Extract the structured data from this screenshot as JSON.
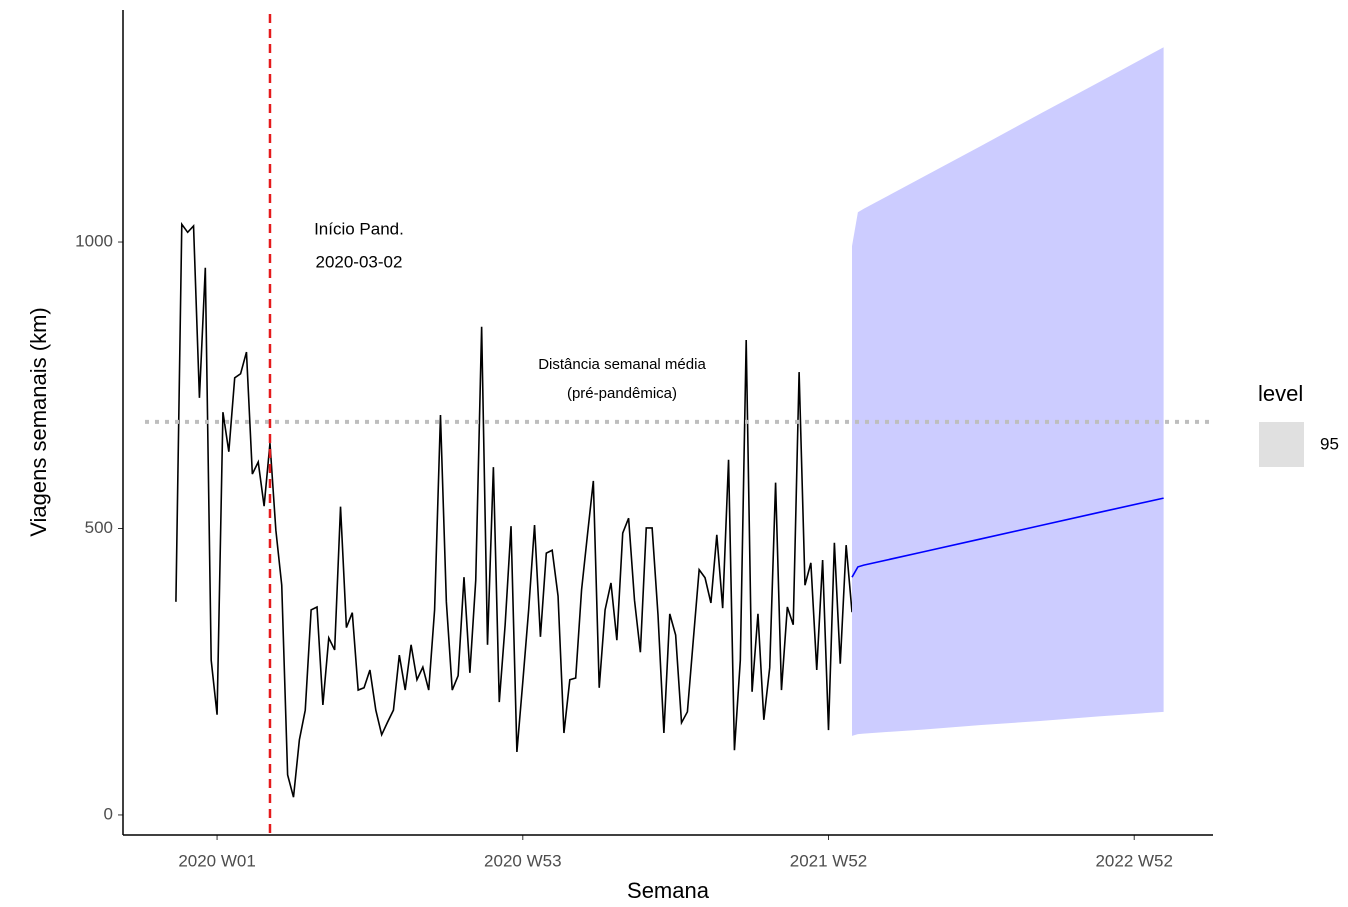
{
  "chart_data": {
    "type": "line",
    "x_label": "Semana",
    "y_label": "Viagens semanais (km)",
    "xlim": [
      -16,
      169.4
    ],
    "ylim": [
      -35,
      1405
    ],
    "xticks": [
      {
        "value": 0,
        "label": "2020 W01"
      },
      {
        "value": 52,
        "label": "2020 W53"
      },
      {
        "value": 104,
        "label": "2021 W52"
      },
      {
        "value": 156,
        "label": "2022 W52"
      }
    ],
    "yticks": [
      0,
      500,
      1000
    ],
    "grid": false,
    "series": [
      {
        "color": "#000000",
        "x": [
          -7,
          -6,
          -5,
          -4,
          -3,
          -2,
          -1,
          0,
          1,
          2,
          3,
          4,
          5,
          6,
          7,
          8,
          9,
          10,
          11,
          12,
          13,
          14,
          15,
          16,
          17,
          18,
          19,
          20,
          21,
          22,
          23,
          24,
          25,
          26,
          27,
          28,
          29,
          30,
          31,
          32,
          33,
          34,
          35,
          36,
          37,
          38,
          39,
          40,
          41,
          42,
          43,
          44,
          45,
          46,
          47,
          48,
          49,
          50,
          51,
          52,
          53,
          54,
          55,
          56,
          57,
          58,
          59,
          60,
          61,
          62,
          63,
          64,
          65,
          66,
          67,
          68,
          69,
          70,
          71,
          72,
          73,
          74,
          75,
          76,
          77,
          78,
          79,
          80,
          81,
          82,
          83,
          84,
          85,
          86,
          87,
          88,
          89,
          90,
          91,
          92,
          93,
          94,
          95,
          96,
          97,
          98,
          99,
          100,
          101,
          102,
          103,
          104,
          105,
          106,
          107,
          108
        ],
        "values": [
          372,
          1031,
          1017,
          1028,
          728,
          955,
          270,
          175,
          703,
          634,
          763,
          770,
          808,
          595,
          616,
          539,
          649,
          497,
          401,
          70,
          31,
          131,
          183,
          358,
          363,
          192,
          309,
          288,
          538,
          327,
          353,
          218,
          222,
          253,
          183,
          140,
          162,
          183,
          279,
          218,
          297,
          236,
          258,
          218,
          358,
          698,
          372,
          218,
          243,
          415,
          248,
          410,
          852,
          297,
          607,
          197,
          332,
          504,
          110,
          232,
          358,
          506,
          311,
          457,
          462,
          382,
          143,
          236,
          239,
          393,
          489,
          583,
          222,
          358,
          405,
          305,
          492,
          518,
          375,
          284,
          501,
          501,
          349,
          143,
          351,
          314,
          161,
          180,
          305,
          428,
          414,
          370,
          489,
          361,
          620,
          113,
          270,
          829,
          215,
          351,
          166,
          257,
          580,
          218,
          363,
          332,
          773,
          401,
          440,
          253,
          445,
          148,
          475,
          264,
          471,
          354
        ]
      },
      {
        "color": "#0000ff",
        "band_color": "#ccccff",
        "x": [
          108,
          109,
          110,
          120,
          130,
          140,
          150,
          161
        ],
        "values": [
          415,
          433,
          436,
          459,
          482,
          505,
          528,
          553
        ],
        "lower": [
          138,
          141,
          142,
          149,
          157,
          164,
          172,
          180
        ],
        "upper": [
          993,
          1052,
          1058,
          1113,
          1168,
          1224,
          1279,
          1340
        ]
      }
    ],
    "vline": {
      "x": 9,
      "color": "#e41a1c",
      "labels": [
        "Início Pand.",
        "2020-03-02"
      ]
    },
    "hline": {
      "y": 686,
      "color": "#bebebe",
      "labels": [
        "Distância semanal média",
        "(pré-pandêmica)"
      ]
    },
    "legend": {
      "title": "level",
      "labels": [
        "95"
      ],
      "color": "#e0e0e0"
    }
  }
}
